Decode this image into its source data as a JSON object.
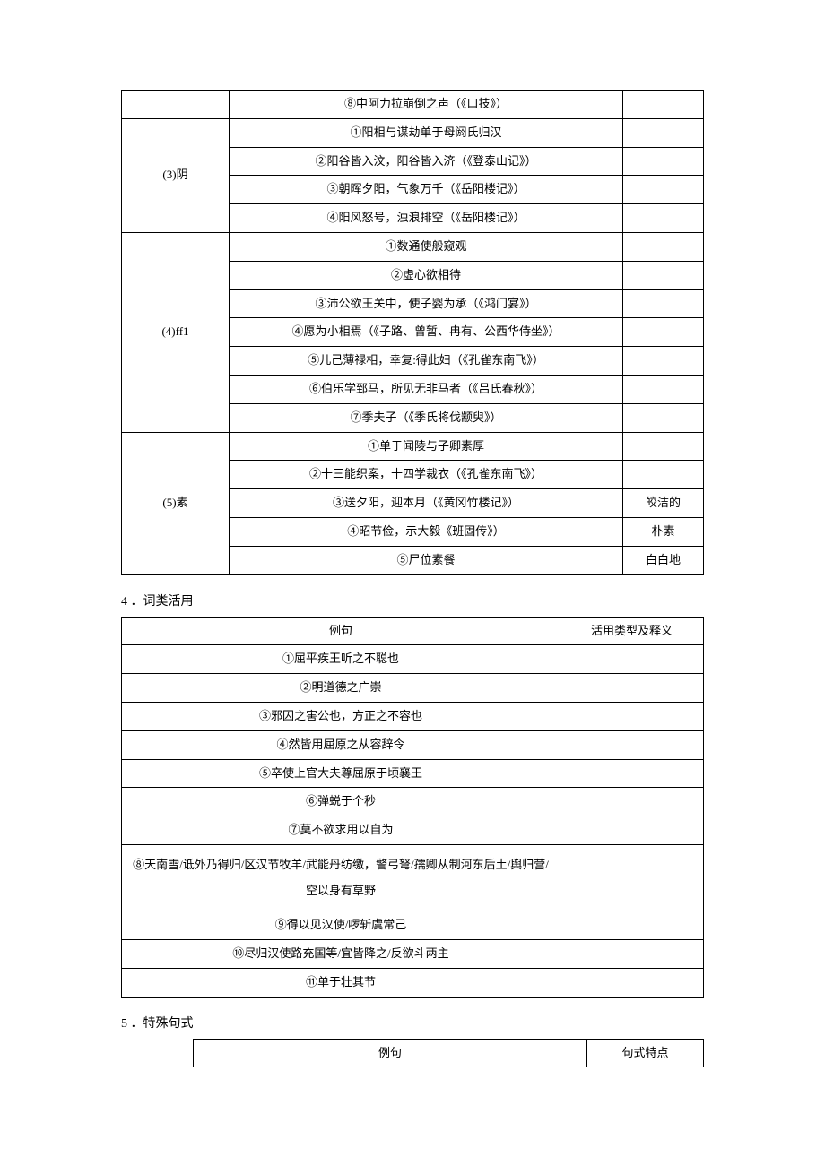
{
  "table1": {
    "row0": {
      "content": "⑧中阿力拉崩倒之声（《口技》）",
      "note": ""
    },
    "group_yin": {
      "label": "(3)阴",
      "r1": {
        "content": "①阳相与谋劫单于母阏氏归汉",
        "note": ""
      },
      "r2": {
        "content": "②阳谷皆入汶，阳谷皆入济（《登泰山记》）",
        "note": ""
      },
      "r3": {
        "content": "③朝晖夕阳，气象万千（《岳阳楼记》）",
        "note": ""
      },
      "r4": {
        "content": "④阳风怒号，浊浪排空（《岳阳楼记》）",
        "note": ""
      }
    },
    "group_ff1": {
      "label": "(4)ff1",
      "r1": {
        "content": "①数通使般窥观",
        "note": ""
      },
      "r2": {
        "content": "②虚心欲相待",
        "note": ""
      },
      "r3": {
        "content": "③沛公欲王关中，使子婴为承（《鸿门宴》）",
        "note": ""
      },
      "r4": {
        "content": "④愿为小相焉（《子路、曾暂、冉有、公西华侍坐》）",
        "note": ""
      },
      "r5": {
        "content": "⑤儿己薄禄相，幸复:得此妇（《孔雀东南飞》）",
        "note": ""
      },
      "r6": {
        "content": "⑥伯乐学郅马，所见无非马者（《吕氏春秋》）",
        "note": ""
      },
      "r7": {
        "content": "⑦季夫子（《季氏将伐颛臾》）",
        "note": ""
      }
    },
    "group_su": {
      "label": "(5)素",
      "r1": {
        "content": "①单于闻陵与子卿素厚",
        "note": ""
      },
      "r2": {
        "content": "②十三能织案，十四学裁衣（《孔雀东南飞》）",
        "note": ""
      },
      "r3": {
        "content": "③送夕阳，迎本月（《黄冈竹楼记》）",
        "note": "皎洁的"
      },
      "r4": {
        "content": "④昭节俭，示大毅《班固传》）",
        "note": "朴素"
      },
      "r5": {
        "content": "⑤尸位素餐",
        "note": "白白地"
      }
    }
  },
  "heading4": "4 ．词类活用",
  "table2": {
    "header": {
      "c1": "例句",
      "c2": "活用类型及释义"
    },
    "r1": "①屈平疾王听之不聪也",
    "r2": "②明道德之广崇",
    "r3": "③邪囚之害公也，方正之不容也",
    "r4": "④然皆用屈原之从容辞令",
    "r5": "⑤卒使上官大夫尊屈原于顷襄王",
    "r6": "⑥弹蜕于个秒",
    "r7": "⑦莫不欲求用以自为",
    "r8": "⑧天南雪/诋外乃得归/区汉节牧羊/武能丹纺缴，警弓弩/孺卿从制河东后土/舆归营/空以身有草野",
    "r9": "⑨得以见汉使/啰斩虞常己",
    "r10": "⑩尽归汉使路充国等/宜皆降之/反欲斗两主",
    "r11": "⑪单于壮其节"
  },
  "heading5": "5 ．特殊句式",
  "table3": {
    "header": {
      "c1": "例句",
      "c2": "句式特点"
    }
  }
}
